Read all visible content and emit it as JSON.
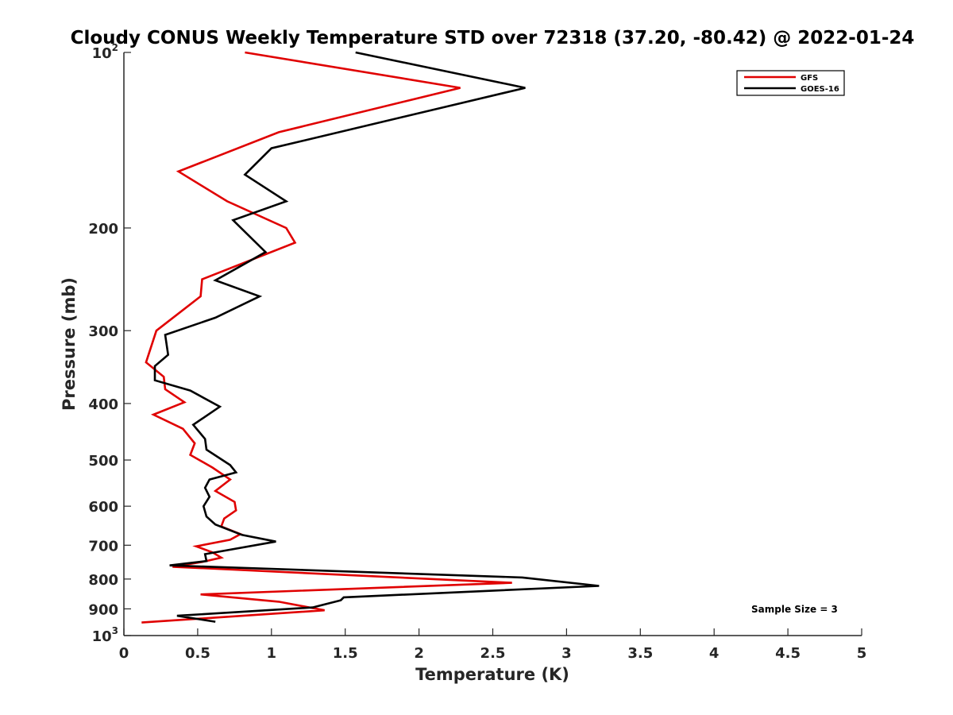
{
  "chart_data": {
    "type": "line",
    "title": "Cloudy CONUS Weekly Temperature STD over 72318 (37.20, -80.42) @ 2022-01-24",
    "xlabel": "Temperature (K)",
    "ylabel": "Pressure (mb)",
    "xlim": [
      0,
      5
    ],
    "ylim": [
      100,
      1000
    ],
    "yscale": "log",
    "yreversed": true,
    "x_ticks": [
      0,
      0.5,
      1,
      1.5,
      2,
      2.5,
      3,
      3.5,
      4,
      4.5,
      5
    ],
    "x_tick_labels": [
      "0",
      "0.5",
      "1",
      "1.5",
      "2",
      "2.5",
      "3",
      "3.5",
      "4",
      "4.5",
      "5"
    ],
    "y_ticks": [
      {
        "value": 100,
        "base": "10",
        "exp": "2"
      },
      {
        "value": 200,
        "label": "200"
      },
      {
        "value": 300,
        "label": "300"
      },
      {
        "value": 400,
        "label": "400"
      },
      {
        "value": 500,
        "label": "500"
      },
      {
        "value": 600,
        "label": "600"
      },
      {
        "value": 700,
        "label": "700"
      },
      {
        "value": 800,
        "label": "800"
      },
      {
        "value": 900,
        "label": "900"
      },
      {
        "value": 1000,
        "base": "10",
        "exp": "3"
      }
    ],
    "legend_position": "top-right",
    "annotation": "Sample Size = 3",
    "series": [
      {
        "name": "GFS",
        "color": "#e00000",
        "points": [
          [
            0.82,
            100
          ],
          [
            2.28,
            115
          ],
          [
            1.05,
            137
          ],
          [
            0.37,
            160
          ],
          [
            0.7,
            180
          ],
          [
            1.1,
            200
          ],
          [
            1.16,
            212
          ],
          [
            0.53,
            245
          ],
          [
            0.52,
            262
          ],
          [
            0.22,
            300
          ],
          [
            0.15,
            340
          ],
          [
            0.27,
            360
          ],
          [
            0.28,
            378
          ],
          [
            0.41,
            398
          ],
          [
            0.2,
            418
          ],
          [
            0.4,
            442
          ],
          [
            0.48,
            468
          ],
          [
            0.45,
            490
          ],
          [
            0.6,
            515
          ],
          [
            0.72,
            540
          ],
          [
            0.62,
            565
          ],
          [
            0.75,
            590
          ],
          [
            0.76,
            610
          ],
          [
            0.68,
            630
          ],
          [
            0.66,
            650
          ],
          [
            0.79,
            670
          ],
          [
            0.72,
            685
          ],
          [
            0.49,
            703
          ],
          [
            0.6,
            720
          ],
          [
            0.66,
            735
          ],
          [
            0.53,
            748
          ],
          [
            0.33,
            762
          ],
          [
            2.63,
            812
          ],
          [
            0.52,
            850
          ],
          [
            1.05,
            875
          ],
          [
            1.36,
            905
          ],
          [
            0.12,
            950
          ]
        ]
      },
      {
        "name": "GOES-16",
        "color": "#000000",
        "points": [
          [
            1.57,
            100
          ],
          [
            2.72,
            115
          ],
          [
            1.0,
            146
          ],
          [
            0.82,
            162
          ],
          [
            1.1,
            180
          ],
          [
            0.74,
            194
          ],
          [
            0.96,
            220
          ],
          [
            0.62,
            246
          ],
          [
            0.92,
            262
          ],
          [
            0.62,
            285
          ],
          [
            0.28,
            305
          ],
          [
            0.3,
            330
          ],
          [
            0.21,
            345
          ],
          [
            0.21,
            365
          ],
          [
            0.45,
            380
          ],
          [
            0.65,
            405
          ],
          [
            0.47,
            435
          ],
          [
            0.55,
            460
          ],
          [
            0.56,
            480
          ],
          [
            0.72,
            510
          ],
          [
            0.76,
            525
          ],
          [
            0.58,
            540
          ],
          [
            0.55,
            558
          ],
          [
            0.58,
            578
          ],
          [
            0.54,
            600
          ],
          [
            0.56,
            625
          ],
          [
            0.62,
            645
          ],
          [
            0.8,
            672
          ],
          [
            1.03,
            690
          ],
          [
            0.55,
            725
          ],
          [
            0.56,
            745
          ],
          [
            0.31,
            758
          ],
          [
            2.7,
            795
          ],
          [
            3.22,
            822
          ],
          [
            1.49,
            860
          ],
          [
            1.47,
            870
          ],
          [
            1.28,
            895
          ],
          [
            0.36,
            925
          ],
          [
            0.62,
            947
          ]
        ]
      }
    ]
  }
}
